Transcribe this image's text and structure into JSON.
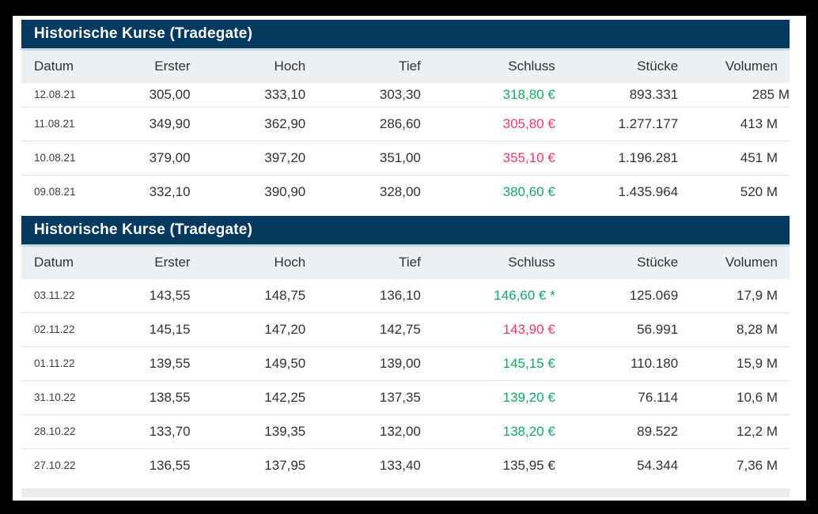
{
  "colors": {
    "frame": "#000000",
    "page_bg": "#ffffff",
    "title_bar_bg": "#05395f",
    "title_bar_text": "#ffffff",
    "title_divider": "#c9d9e6",
    "column_header_bg": "#edf0f3",
    "row_separator": "#e0e2e4",
    "positive": "#16a963",
    "negative": "#f33a60",
    "neutral_text": "#2e3338"
  },
  "column_keys": [
    "datum",
    "erster",
    "hoch",
    "tief",
    "schluss",
    "stuecke",
    "volumen"
  ],
  "tables": [
    {
      "title": "Historische Kurse (Tradegate)",
      "columns": [
        "Datum",
        "Erster",
        "Hoch",
        "Tief",
        "Schluss",
        "Stücke",
        "Volumen"
      ],
      "rows": [
        {
          "clipped": true,
          "datum": "12.08.21",
          "erster": "305,00",
          "hoch": "333,10",
          "tief": "303,30",
          "schluss": "318,80 €",
          "trend": "up",
          "stuecke": "893.331",
          "volumen": "285 M"
        },
        {
          "datum": "11.08.21",
          "erster": "349,90",
          "hoch": "362,90",
          "tief": "286,60",
          "schluss": "305,80 €",
          "trend": "down",
          "stuecke": "1.277.177",
          "volumen": "413 M"
        },
        {
          "datum": "10.08.21",
          "erster": "379,00",
          "hoch": "397,20",
          "tief": "351,00",
          "schluss": "355,10 €",
          "trend": "down",
          "stuecke": "1.196.281",
          "volumen": "451 M"
        },
        {
          "datum": "09.08.21",
          "erster": "332,10",
          "hoch": "390,90",
          "tief": "328,00",
          "schluss": "380,60 €",
          "trend": "up",
          "stuecke": "1.435.964",
          "volumen": "520 M"
        }
      ]
    },
    {
      "title": "Historische Kurse (Tradegate)",
      "columns": [
        "Datum",
        "Erster",
        "Hoch",
        "Tief",
        "Schluss",
        "Stücke",
        "Volumen"
      ],
      "rows": [
        {
          "datum": "03.11.22",
          "erster": "143,55",
          "hoch": "148,75",
          "tief": "136,10",
          "schluss": "146,60 € *",
          "trend": "up",
          "stuecke": "125.069",
          "volumen": "17,9 M"
        },
        {
          "datum": "02.11.22",
          "erster": "145,15",
          "hoch": "147,20",
          "tief": "142,75",
          "schluss": "143,90 €",
          "trend": "down",
          "stuecke": "56.991",
          "volumen": "8,28 M"
        },
        {
          "datum": "01.11.22",
          "erster": "139,55",
          "hoch": "149,50",
          "tief": "139,00",
          "schluss": "145,15 €",
          "trend": "up",
          "stuecke": "110.180",
          "volumen": "15,9 M"
        },
        {
          "datum": "31.10.22",
          "erster": "138,55",
          "hoch": "142,25",
          "tief": "137,35",
          "schluss": "139,20 €",
          "trend": "up",
          "stuecke": "76.114",
          "volumen": "10,6 M"
        },
        {
          "datum": "28.10.22",
          "erster": "133,70",
          "hoch": "139,35",
          "tief": "132,00",
          "schluss": "138,20 €",
          "trend": "up",
          "stuecke": "89.522",
          "volumen": "12,2 M"
        },
        {
          "datum": "27.10.22",
          "erster": "136,55",
          "hoch": "137,95",
          "tief": "133,40",
          "schluss": "135,95 €",
          "trend": "neutral",
          "stuecke": "54.344",
          "volumen": "7,36 M"
        }
      ]
    }
  ]
}
